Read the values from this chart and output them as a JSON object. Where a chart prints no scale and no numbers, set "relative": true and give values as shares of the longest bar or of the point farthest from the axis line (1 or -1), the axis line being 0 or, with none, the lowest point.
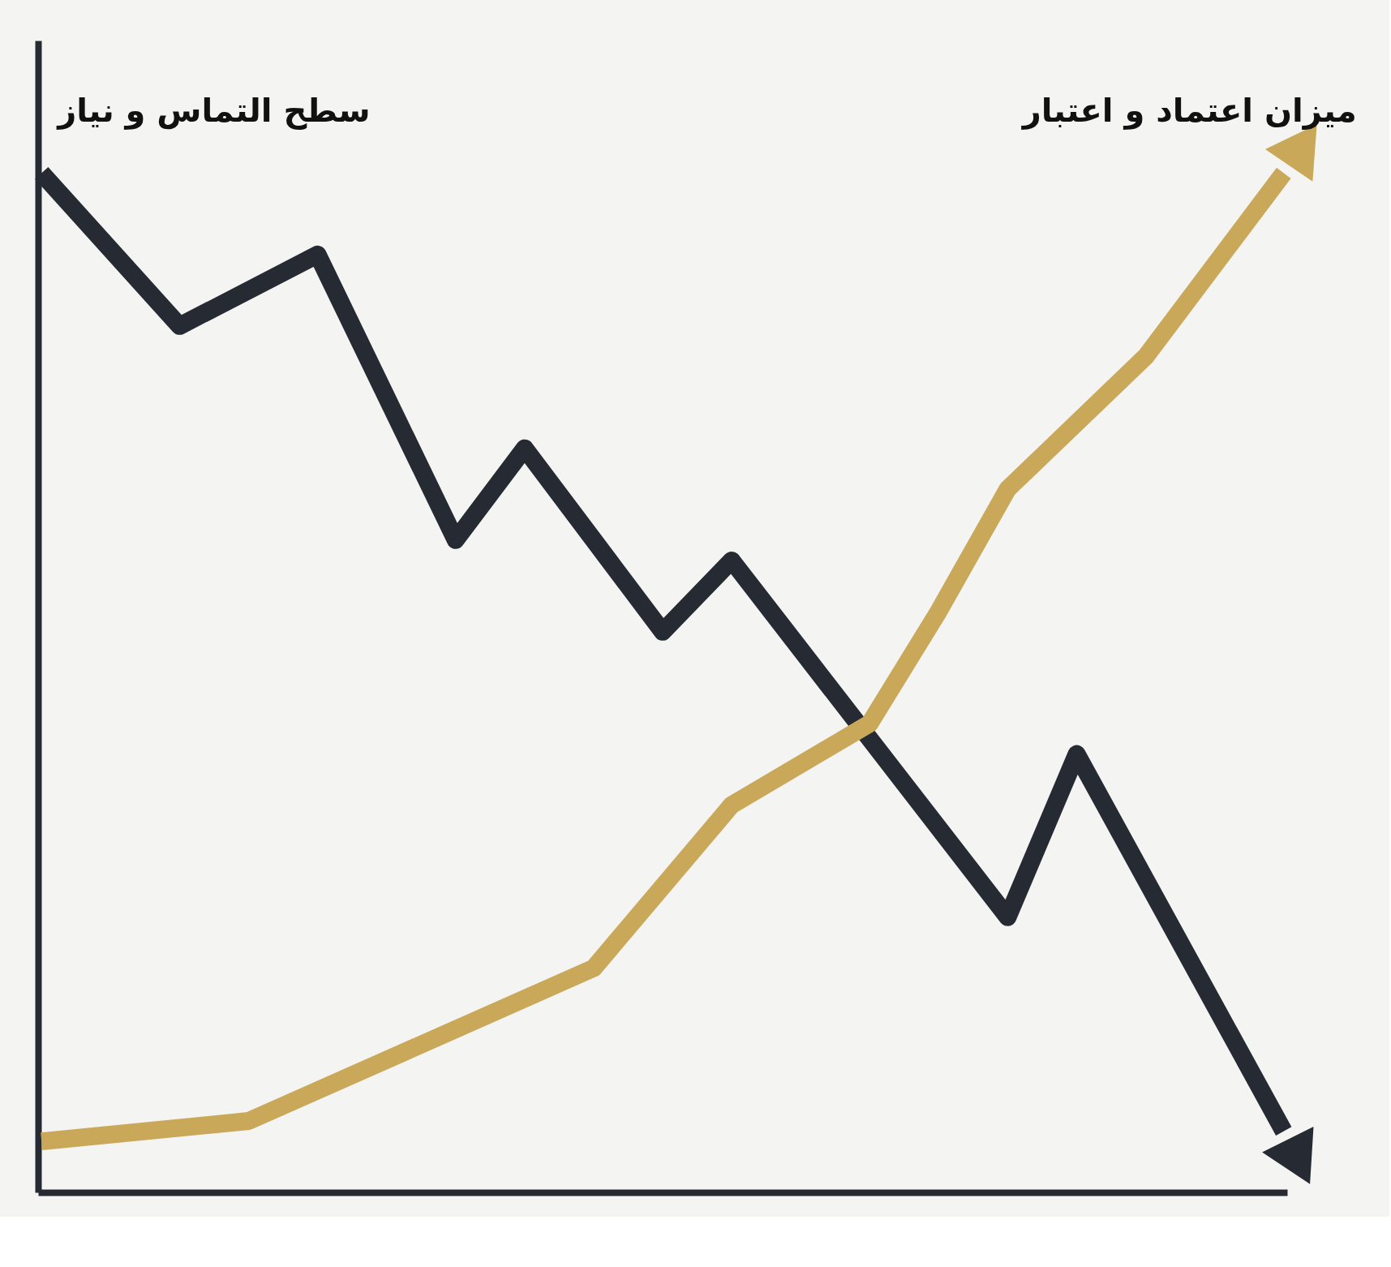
{
  "chart_data": {
    "type": "line",
    "relative": true,
    "marker": "none",
    "line_style": "solid",
    "categories": [
      null,
      null,
      null,
      null,
      null,
      null,
      null,
      null,
      null,
      null,
      null,
      null,
      null,
      null,
      null,
      null,
      null,
      null,
      null
    ],
    "series": [
      {
        "name": "سطح التماس و نیاز",
        "color": "#262b33",
        "values": [
          1,
          null,
          0.85,
          null,
          0.92,
          null,
          0.64,
          0.73,
          null,
          0.55,
          0.62,
          null,
          null,
          null,
          0.27,
          0.43,
          null,
          null,
          0.06
        ]
      },
      {
        "name": "میزان اعتماد و اعتبار",
        "color": "#c9a85a",
        "values": [
          0.05,
          null,
          null,
          0.07,
          null,
          0.13,
          null,
          null,
          0.22,
          null,
          0.38,
          null,
          0.46,
          0.57,
          0.69,
          null,
          0.82,
          null,
          1.0
        ]
      }
    ]
  }
}
